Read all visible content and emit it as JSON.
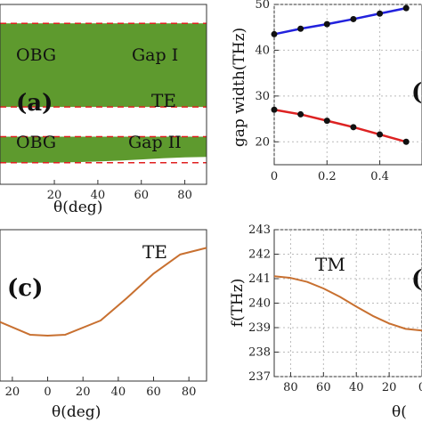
{
  "chart_data": [
    {
      "panel": "(a)",
      "type": "area",
      "polarization_label": "TE",
      "xlabel": "θ(deg)",
      "xticks": [
        "20",
        "40",
        "60",
        "80"
      ],
      "x_range": [
        -5,
        90
      ],
      "y_range": [
        0,
        1
      ],
      "bands": [
        {
          "name_left": "OBG",
          "name_right": "Gap I",
          "lower": 0.43,
          "upper": 0.895
        },
        {
          "name_left": "OBG",
          "name_right": "Gap II",
          "lower_x": [
            -5,
            10,
            20,
            30,
            40,
            50,
            60,
            70,
            80,
            90
          ],
          "lower": [
            0.12,
            0.12,
            0.12,
            0.123,
            0.127,
            0.132,
            0.138,
            0.145,
            0.15,
            0.152
          ],
          "upper": 0.265
        }
      ],
      "colors": {
        "fill": "#5e9a2e",
        "dash": "#e02020"
      }
    },
    {
      "panel": "(b)",
      "type": "line",
      "ylabel": "gap width(THz)",
      "x_range": [
        0,
        0.56
      ],
      "y_range": [
        15,
        50
      ],
      "xticks": [
        "0",
        "0.2",
        "0.4"
      ],
      "yticks": [
        "20",
        "30",
        "40",
        "50"
      ],
      "series": [
        {
          "color": "#2222dd",
          "x": [
            0,
            0.1,
            0.2,
            0.3,
            0.4,
            0.5
          ],
          "y": [
            43.5,
            44.7,
            45.7,
            46.8,
            48.0,
            49.2
          ]
        },
        {
          "color": "#dd2222",
          "x": [
            0,
            0.1,
            0.2,
            0.3,
            0.4,
            0.5
          ],
          "y": [
            27,
            26,
            24.6,
            23.2,
            21.6,
            20
          ]
        }
      ]
    },
    {
      "panel": "(c)",
      "type": "line",
      "polarization_label": "TE",
      "xlabel": "θ(deg)",
      "xticks": [
        "20",
        "0",
        "20",
        "40",
        "60",
        "80"
      ],
      "x_range": [
        -27,
        90
      ],
      "curve_color": "#c87030",
      "x": [
        -27,
        -10,
        0,
        10,
        30,
        45,
        60,
        75,
        90
      ],
      "y_norm": [
        0.39,
        0.306,
        0.3,
        0.306,
        0.4,
        0.55,
        0.71,
        0.836,
        0.88
      ]
    },
    {
      "panel": "(d)",
      "type": "line",
      "polarization_label": "TM",
      "ylabel": "f(THz)",
      "xlabel": "θ(",
      "x_range": [
        90,
        0
      ],
      "y_range": [
        237,
        243
      ],
      "xticks": [
        "80",
        "60",
        "40",
        "20",
        "0"
      ],
      "yticks": [
        "243",
        "242",
        "241",
        "240",
        "239",
        "238",
        "237"
      ],
      "curve_color": "#c87030",
      "x": [
        90,
        80,
        70,
        60,
        50,
        40,
        30,
        20,
        10,
        0
      ],
      "y": [
        241.1,
        241.03,
        240.87,
        240.6,
        240.26,
        239.86,
        239.48,
        239.17,
        238.95,
        238.88
      ]
    }
  ]
}
